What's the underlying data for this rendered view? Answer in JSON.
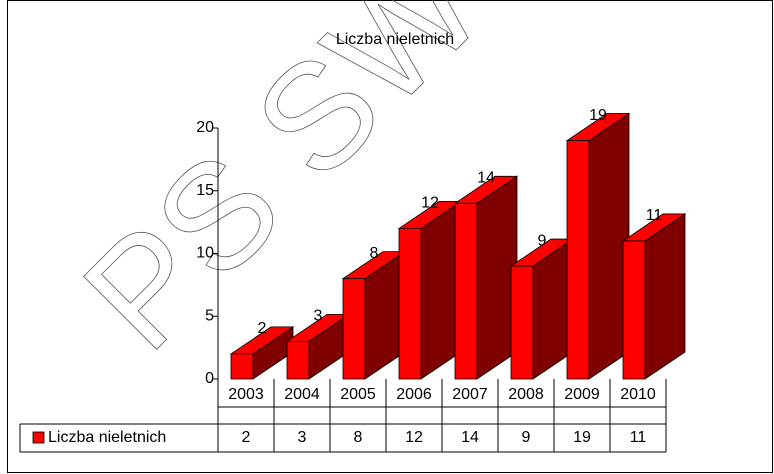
{
  "chart_data": {
    "type": "bar3d",
    "title": "Liczba nieletnich",
    "categories": [
      "2003",
      "2004",
      "2005",
      "2006",
      "2007",
      "2008",
      "2009",
      "2010"
    ],
    "series": [
      {
        "name": "Liczba nieletnich",
        "color": "#ff0000",
        "values": [
          2,
          3,
          8,
          12,
          14,
          9,
          19,
          11
        ]
      }
    ],
    "ylim": [
      0,
      20
    ],
    "yticks": [
      0,
      5,
      10,
      15,
      20
    ],
    "grid": false,
    "data_table": true,
    "watermark": "PS SW"
  }
}
